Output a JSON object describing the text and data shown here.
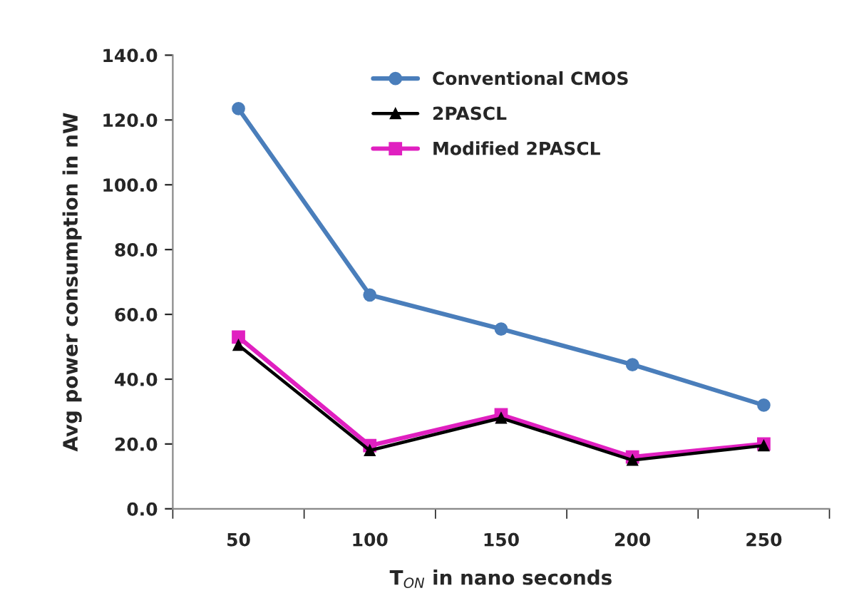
{
  "chart_data": {
    "type": "line",
    "xlabel": "T$_{ON}$ in nano seconds",
    "ylabel": "Avg power consumption in nW",
    "categories": [
      "50",
      "100",
      "150",
      "200",
      "250"
    ],
    "series": [
      {
        "name": "Conventional CMOS",
        "color": "#4a7ebb",
        "marker": "circle",
        "values": [
          123.5,
          66,
          55.5,
          44.5,
          32
        ]
      },
      {
        "name": "2PASCL",
        "color": "#000000",
        "marker": "triangle",
        "values": [
          50.5,
          18,
          28,
          15,
          19.5
        ]
      },
      {
        "name": "Modified 2PASCL",
        "color": "#e020c0",
        "marker": "square",
        "values": [
          53,
          19.5,
          29,
          16,
          20
        ]
      }
    ],
    "ylim": [
      0,
      140
    ],
    "yticks": [
      {
        "value": 0,
        "label": "0.0"
      },
      {
        "value": 20,
        "label": "20.0"
      },
      {
        "value": 40,
        "label": "40.0"
      },
      {
        "value": 60,
        "label": "60.0"
      },
      {
        "value": 80,
        "label": "80.0"
      },
      {
        "value": 100,
        "label": "100.0"
      },
      {
        "value": 120,
        "label": "120.0"
      },
      {
        "value": 140,
        "label": "140.0"
      }
    ],
    "grid": false,
    "legend": "top",
    "line_style": "solid"
  }
}
